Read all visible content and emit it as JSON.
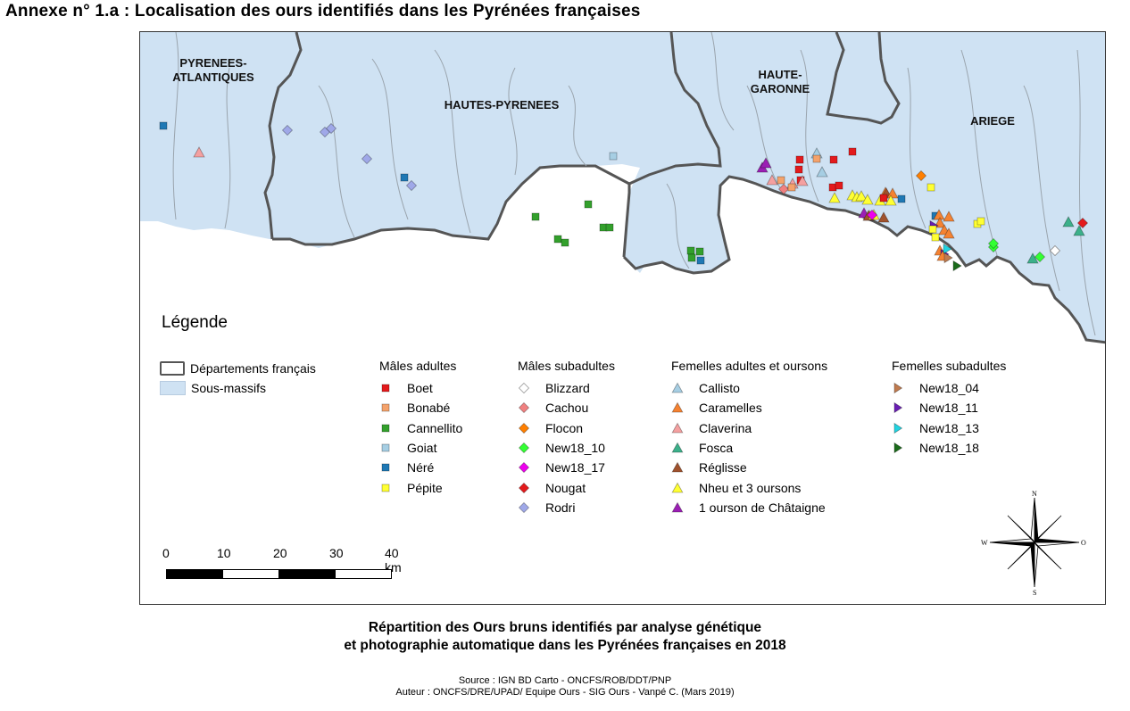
{
  "title": "Annexe n° 1.a : Localisation des ours identifiés dans les Pyrénées françaises",
  "map": {
    "departments": [
      {
        "id": "pa",
        "label": "PYRENEES-\nATLANTIQUES"
      },
      {
        "id": "hp",
        "label": "HAUTES-PYRENEES"
      },
      {
        "id": "hg",
        "label": "HAUTE-\nGARONNE"
      },
      {
        "id": "ar",
        "label": "ARIEGE"
      }
    ],
    "colors": {
      "sous_massifs": "#cfe2f3",
      "departements_border": "#555555",
      "river": "#9aa4ad"
    }
  },
  "legend": {
    "title": "Légende",
    "base": [
      {
        "label": "Départements français",
        "symbol": "dept-outline"
      },
      {
        "label": "Sous-massifs",
        "symbol": "fill"
      }
    ],
    "groups": [
      {
        "title": "Mâles adultes",
        "shape": "square",
        "items": [
          {
            "label": "Boet",
            "color": "#e31a1c"
          },
          {
            "label": "Bonabé",
            "color": "#f4a26b"
          },
          {
            "label": "Cannellito",
            "color": "#33a02c"
          },
          {
            "label": "Goiat",
            "color": "#a6cee3"
          },
          {
            "label": "Néré",
            "color": "#1f78b4"
          },
          {
            "label": "Pépite",
            "color": "#ffff33"
          }
        ]
      },
      {
        "title": "Mâles subadultes",
        "shape": "diamond",
        "items": [
          {
            "label": "Blizzard",
            "color": "#ffffff"
          },
          {
            "label": "Cachou",
            "color": "#f08080"
          },
          {
            "label": "Flocon",
            "color": "#ff7f00"
          },
          {
            "label": "New18_10",
            "color": "#33ff33"
          },
          {
            "label": "New18_17",
            "color": "#ee00ee"
          },
          {
            "label": "Nougat",
            "color": "#e31a1c"
          },
          {
            "label": "Rodri",
            "color": "#9fa8e8"
          }
        ]
      },
      {
        "title": "Femelles adultes et oursons",
        "shape": "triangle",
        "items": [
          {
            "label": "Callisto",
            "color": "#a6cee3"
          },
          {
            "label": "Caramelles",
            "color": "#f58231"
          },
          {
            "label": "Claverina",
            "color": "#f4a0a0"
          },
          {
            "label": "Fosca",
            "color": "#3cb08a"
          },
          {
            "label": "Réglisse",
            "color": "#a0522d"
          },
          {
            "label": "Nheu et 3 oursons",
            "color": "#ffff33"
          },
          {
            "label": "1 ourson de Châtaigne",
            "color": "#9b1fb4"
          }
        ]
      },
      {
        "title": "Femelles subadultes",
        "shape": "arrow",
        "items": [
          {
            "label": "New18_04",
            "color": "#c07b4f"
          },
          {
            "label": "New18_11",
            "color": "#6a1fb4"
          },
          {
            "label": "New18_13",
            "color": "#22d3e0"
          },
          {
            "label": "New18_18",
            "color": "#1b6b1b"
          }
        ]
      }
    ]
  },
  "scale": {
    "ticks": [
      "0",
      "10",
      "20",
      "30",
      "40 km"
    ]
  },
  "compass": {
    "n": "N",
    "s": "S",
    "w": "W",
    "e": "O"
  },
  "caption": {
    "line1": "Répartition des Ours bruns identifiés par analyse génétique",
    "line2": "et photographie automatique dans les Pyrénées françaises en 2018",
    "source": "Source : IGN BD Carto - ONCFS/ROB/DDT/PNP",
    "author": "Auteur : ONCFS/DRE/UPAD/ Equipe Ours - SIG Ours - Vanpé C. (Mars 2019)"
  }
}
